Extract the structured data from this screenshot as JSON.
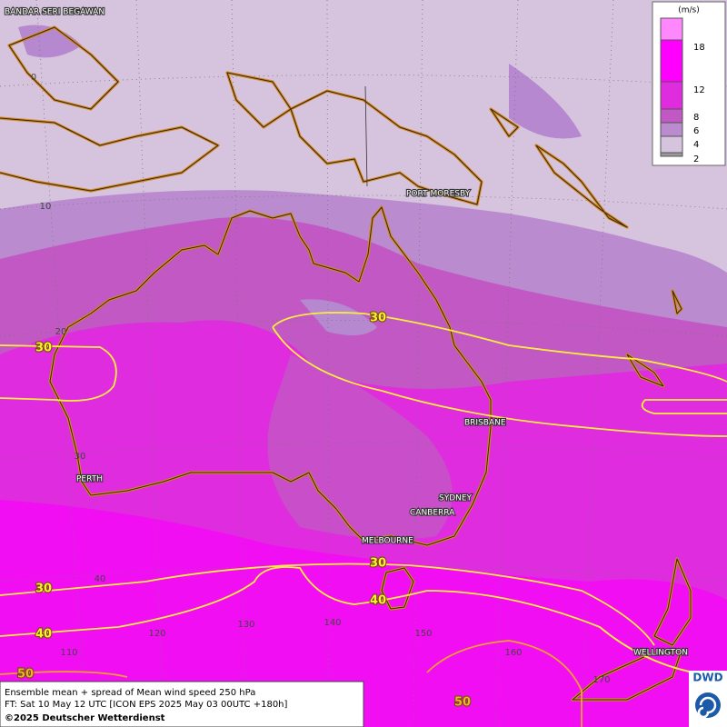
{
  "map": {
    "cities": [
      "BANDAR SERI BEGAWAN",
      "PORT MORESBY",
      "BRISBANE",
      "PERTH",
      "SYDNEY",
      "CANBERRA",
      "MELBOURNE",
      "WELLINGTON"
    ],
    "contour_labels": [
      "30",
      "30",
      "30",
      "30",
      "40",
      "40",
      "50",
      "50"
    ],
    "grid_labels": [
      "0",
      "10",
      "20",
      "30",
      "40",
      "110",
      "120",
      "130",
      "140",
      "150",
      "160",
      "170"
    ]
  },
  "legend": {
    "unit": "(m/s)",
    "levels": [
      "18",
      "12",
      "8",
      "6",
      "4",
      "2"
    ]
  },
  "footer": {
    "lines": [
      "Ensemble mean + spread of Mean wind speed 250 hPa",
      "FT: Sat 10 May 12 UTC [ICON EPS 2025 May 03 00UTC +180h]",
      "©2025 Deutscher Wetterdienst"
    ]
  },
  "logo": "DWD"
}
